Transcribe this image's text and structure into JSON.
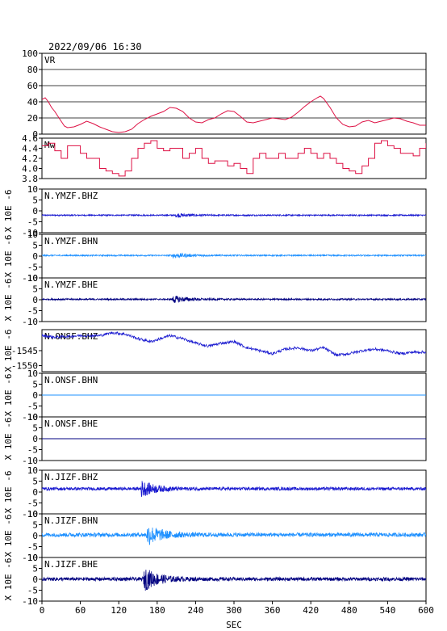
{
  "chart_data": {
    "type": "line",
    "title": "2022/09/06 16:30",
    "xlabel": "SEC",
    "xlim": [
      0,
      600
    ],
    "x_ticks": [
      "0",
      "60",
      "120",
      "180",
      "240",
      "300",
      "360",
      "420",
      "480",
      "540",
      "600"
    ],
    "wave_ylabel": "X 10E -6",
    "panels": [
      {
        "name": "VR",
        "label": "VR",
        "kind": "vr",
        "color": "#dd1144",
        "ylim": [
          0,
          100
        ],
        "yticks": [
          "100",
          "80",
          "60",
          "40",
          "20",
          "0"
        ],
        "grid": true,
        "values": [
          [
            0,
            43
          ],
          [
            5,
            45
          ],
          [
            10,
            40
          ],
          [
            15,
            33
          ],
          [
            20,
            28
          ],
          [
            25,
            22
          ],
          [
            30,
            16
          ],
          [
            35,
            10
          ],
          [
            40,
            8
          ],
          [
            50,
            9
          ],
          [
            60,
            12
          ],
          [
            70,
            16
          ],
          [
            80,
            13
          ],
          [
            90,
            9
          ],
          [
            100,
            6
          ],
          [
            110,
            3
          ],
          [
            120,
            2
          ],
          [
            130,
            3
          ],
          [
            140,
            6
          ],
          [
            150,
            13
          ],
          [
            160,
            18
          ],
          [
            170,
            22
          ],
          [
            180,
            25
          ],
          [
            190,
            28
          ],
          [
            200,
            33
          ],
          [
            210,
            32
          ],
          [
            220,
            28
          ],
          [
            230,
            20
          ],
          [
            240,
            15
          ],
          [
            250,
            14
          ],
          [
            260,
            18
          ],
          [
            270,
            20
          ],
          [
            280,
            25
          ],
          [
            290,
            29
          ],
          [
            300,
            28
          ],
          [
            310,
            22
          ],
          [
            320,
            15
          ],
          [
            330,
            14
          ],
          [
            340,
            16
          ],
          [
            350,
            18
          ],
          [
            360,
            20
          ],
          [
            370,
            19
          ],
          [
            380,
            18
          ],
          [
            390,
            21
          ],
          [
            400,
            27
          ],
          [
            410,
            34
          ],
          [
            420,
            40
          ],
          [
            430,
            45
          ],
          [
            435,
            47
          ],
          [
            440,
            44
          ],
          [
            450,
            33
          ],
          [
            460,
            20
          ],
          [
            470,
            12
          ],
          [
            480,
            9
          ],
          [
            490,
            10
          ],
          [
            500,
            15
          ],
          [
            510,
            17
          ],
          [
            520,
            14
          ],
          [
            530,
            16
          ],
          [
            540,
            18
          ],
          [
            550,
            20
          ],
          [
            560,
            19
          ],
          [
            570,
            16
          ],
          [
            580,
            14
          ],
          [
            590,
            11
          ],
          [
            600,
            11
          ]
        ]
      },
      {
        "name": "Mw",
        "label": "Mw",
        "kind": "mw",
        "color": "#dd1144",
        "ylim": [
          3.8,
          4.6
        ],
        "yticks": [
          "4.6",
          "4.4",
          "4.2",
          "4.0",
          "3.8"
        ],
        "grid": false,
        "values": [
          [
            0,
            4.45
          ],
          [
            10,
            4.5
          ],
          [
            20,
            4.35
          ],
          [
            30,
            4.2
          ],
          [
            40,
            4.45
          ],
          [
            50,
            4.45
          ],
          [
            60,
            4.3
          ],
          [
            70,
            4.2
          ],
          [
            80,
            4.2
          ],
          [
            90,
            4.0
          ],
          [
            100,
            3.95
          ],
          [
            110,
            3.9
          ],
          [
            120,
            3.85
          ],
          [
            130,
            3.95
          ],
          [
            140,
            4.2
          ],
          [
            150,
            4.4
          ],
          [
            160,
            4.5
          ],
          [
            170,
            4.55
          ],
          [
            180,
            4.4
          ],
          [
            190,
            4.35
          ],
          [
            200,
            4.4
          ],
          [
            210,
            4.4
          ],
          [
            220,
            4.2
          ],
          [
            230,
            4.3
          ],
          [
            240,
            4.4
          ],
          [
            250,
            4.2
          ],
          [
            260,
            4.1
          ],
          [
            270,
            4.15
          ],
          [
            280,
            4.15
          ],
          [
            290,
            4.05
          ],
          [
            300,
            4.1
          ],
          [
            310,
            4.0
          ],
          [
            320,
            3.9
          ],
          [
            330,
            4.2
          ],
          [
            340,
            4.3
          ],
          [
            350,
            4.2
          ],
          [
            360,
            4.2
          ],
          [
            370,
            4.3
          ],
          [
            380,
            4.2
          ],
          [
            390,
            4.2
          ],
          [
            400,
            4.3
          ],
          [
            410,
            4.4
          ],
          [
            420,
            4.3
          ],
          [
            430,
            4.2
          ],
          [
            440,
            4.3
          ],
          [
            450,
            4.2
          ],
          [
            460,
            4.1
          ],
          [
            470,
            4.0
          ],
          [
            480,
            3.95
          ],
          [
            490,
            3.9
          ],
          [
            500,
            4.05
          ],
          [
            510,
            4.2
          ],
          [
            520,
            4.5
          ],
          [
            530,
            4.55
          ],
          [
            540,
            4.45
          ],
          [
            550,
            4.4
          ],
          [
            560,
            4.3
          ],
          [
            570,
            4.3
          ],
          [
            580,
            4.25
          ],
          [
            590,
            4.4
          ],
          [
            600,
            4.5
          ]
        ]
      },
      {
        "name": "N.YMZF.BHZ",
        "label": "N.YMZF.BHZ",
        "kind": "wave",
        "color": "#1a1ad0",
        "ylim": [
          -10,
          10
        ],
        "yticks": [
          "10",
          "5",
          "0",
          "-5",
          "-10"
        ],
        "offset": -2.0,
        "noise": 0.3,
        "events": [
          [
            210,
            0.9
          ]
        ]
      },
      {
        "name": "N.YMZF.BHN",
        "label": "N.YMZF.BHN",
        "kind": "wave",
        "color": "#1e90ff",
        "ylim": [
          -10,
          10
        ],
        "yticks": [
          "10",
          "5",
          "0",
          "-5",
          "-10"
        ],
        "offset": 0.3,
        "noise": 0.3,
        "events": [
          [
            205,
            1.2
          ]
        ]
      },
      {
        "name": "N.YMZF.BHE",
        "label": "N.YMZF.BHE",
        "kind": "wave",
        "color": "#000080",
        "ylim": [
          -10,
          10
        ],
        "yticks": [
          "10",
          "5",
          "0",
          "-5",
          "-10"
        ],
        "offset": 0.2,
        "noise": 0.35,
        "events": [
          [
            205,
            1.6
          ]
        ]
      },
      {
        "name": "N.ONSF.BHZ",
        "label": "N.ONSF.BHZ",
        "kind": "drift",
        "color": "#1a1ad0",
        "ylim": [
          -1552,
          -1538
        ],
        "yticks": [
          "-1545",
          "-1550"
        ],
        "tick_values": [
          -1545,
          -1550
        ],
        "grid": false,
        "noise": 0.45,
        "values": [
          [
            0,
            -1540
          ],
          [
            20,
            -1540.5
          ],
          [
            60,
            -1540
          ],
          [
            90,
            -1540
          ],
          [
            110,
            -1539
          ],
          [
            130,
            -1539.5
          ],
          [
            150,
            -1541
          ],
          [
            170,
            -1542
          ],
          [
            200,
            -1540
          ],
          [
            220,
            -1541
          ],
          [
            240,
            -1542.5
          ],
          [
            260,
            -1543.5
          ],
          [
            280,
            -1542.5
          ],
          [
            300,
            -1542
          ],
          [
            320,
            -1544
          ],
          [
            340,
            -1545
          ],
          [
            360,
            -1546
          ],
          [
            380,
            -1544.5
          ],
          [
            400,
            -1544
          ],
          [
            420,
            -1545
          ],
          [
            440,
            -1544
          ],
          [
            460,
            -1546.5
          ],
          [
            480,
            -1546
          ],
          [
            500,
            -1545
          ],
          [
            520,
            -1544.5
          ],
          [
            540,
            -1545
          ],
          [
            560,
            -1546
          ],
          [
            580,
            -1545.5
          ],
          [
            600,
            -1545.5
          ]
        ]
      },
      {
        "name": "N.ONSF.BHN",
        "label": "N.ONSF.BHN",
        "kind": "flat",
        "color": "#1e90ff",
        "ylim": [
          -10,
          10
        ],
        "yticks": [
          "10",
          "5",
          "0",
          "-5",
          "-10"
        ],
        "offset": 0
      },
      {
        "name": "N.ONSF.BHE",
        "label": "N.ONSF.BHE",
        "kind": "flat",
        "color": "#000080",
        "ylim": [
          -10,
          10
        ],
        "yticks": [
          "10",
          "5",
          "0",
          "-5",
          "-10"
        ],
        "offset": 0
      },
      {
        "name": "N.JIZF.BHZ",
        "label": "N.JIZF.BHZ",
        "kind": "wave",
        "color": "#1a1ad0",
        "ylim": [
          -10,
          10
        ],
        "yticks": [
          "10",
          "5",
          "0",
          "-5",
          "-10"
        ],
        "offset": 1.5,
        "noise": 0.7,
        "events": [
          [
            155,
            3.5
          ]
        ]
      },
      {
        "name": "N.JIZF.BHN",
        "label": "N.JIZF.BHN",
        "kind": "wave",
        "color": "#1e90ff",
        "ylim": [
          -10,
          10
        ],
        "yticks": [
          "10",
          "5",
          "0",
          "-5",
          "-10"
        ],
        "offset": 0.4,
        "noise": 0.9,
        "events": [
          [
            165,
            4.5
          ]
        ]
      },
      {
        "name": "N.JIZF.BHE",
        "label": "N.JIZF.BHE",
        "kind": "wave",
        "color": "#000080",
        "ylim": [
          -10,
          10
        ],
        "yticks": [
          "10",
          "5",
          "0",
          "-5",
          "-10"
        ],
        "offset": 0.1,
        "noise": 0.8,
        "events": [
          [
            160,
            5.0
          ]
        ]
      }
    ]
  }
}
